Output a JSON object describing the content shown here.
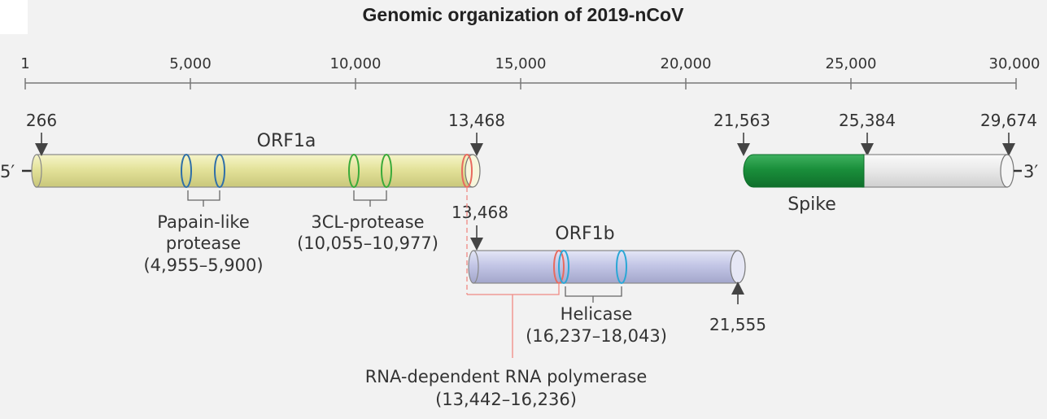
{
  "title": "Genomic organization of 2019-nCoV",
  "axis": {
    "ticks": [
      "1",
      "5,000",
      "10,000",
      "15,000",
      "20,000",
      "25,000",
      "30,000"
    ]
  },
  "genome_ends": {
    "five_prime": "5′",
    "three_prime": "3′"
  },
  "positions": {
    "orf1a_start": "266",
    "orf1a_end": "13,468",
    "orf1b_start": "13,468",
    "orf1b_end": "21,555",
    "spike_start": "21,563",
    "spike_end": "25,384",
    "genome_end": "29,674"
  },
  "genes": {
    "orf1a": "ORF1a",
    "orf1b": "ORF1b",
    "spike": "Spike"
  },
  "domains": {
    "papain_line1": "Papain-like",
    "papain_line2": "protease",
    "papain_range": "(4,955–5,900)",
    "cl3_line1": "3CL-protease",
    "cl3_range": "(10,055–10,977)",
    "helicase_line1": "Helicase",
    "helicase_range": "(16,237–18,043)",
    "rdrp_line1": "RNA-dependent RNA polymerase",
    "rdrp_range": "(13,442–16,236)"
  },
  "colors": {
    "orf1a": "#e3e29a",
    "orf1b": "#c3c6e6",
    "spike": "#1a8f3b",
    "spike_rest": "#e6e6e6",
    "papain_ring": "#2f6fa8",
    "cl3_ring": "#3aaa3a",
    "helicase_ring": "#2aa7d6",
    "rdrp_ring": "#e86a5e"
  }
}
